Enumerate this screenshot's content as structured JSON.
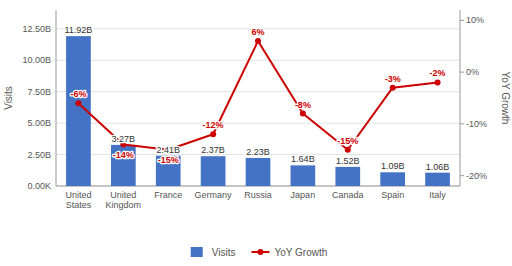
{
  "chart_data": {
    "type": "bar",
    "categories": [
      "United\nStates",
      "United\nKingdom",
      "France",
      "Germany",
      "Russia",
      "Japan",
      "Canada",
      "Spain",
      "Italy"
    ],
    "ylabel": "Visits",
    "y2label": "YoY Growth",
    "series": [
      {
        "name": "Visits",
        "type": "bar",
        "color": "#4472C4",
        "values": [
          11.92,
          3.27,
          2.41,
          2.37,
          2.23,
          1.64,
          1.52,
          1.09,
          1.06
        ],
        "value_labels": [
          "11.92B",
          "3.27B",
          "2.41B",
          "2.37B",
          "2.23B",
          "1.64B",
          "1.52B",
          "1.09B",
          "1.06B"
        ]
      },
      {
        "name": "YoY Growth",
        "type": "line",
        "axis": "y2",
        "color": "#CC0000",
        "marker": "circle",
        "line_style": "solid",
        "values": [
          -6,
          -14,
          -15,
          -12,
          6,
          -8,
          -15,
          -3,
          -2
        ],
        "value_labels": [
          "-6%",
          "-14%",
          "-15%",
          "-12%",
          "6%",
          "-8%",
          "-15%",
          "-3%",
          "-2%"
        ]
      }
    ],
    "ylim": [
      0,
      14.0
    ],
    "yticks": [
      {
        "value": 0,
        "label": "0.00K"
      },
      {
        "value": 2.5,
        "label": "2.50B"
      },
      {
        "value": 5.0,
        "label": "5.00B"
      },
      {
        "value": 7.5,
        "label": "7.50B"
      },
      {
        "value": 10.0,
        "label": "10.00B"
      },
      {
        "value": 12.5,
        "label": "12.50B"
      }
    ],
    "y2lim": [
      -22,
      12
    ],
    "y2ticks": [
      {
        "value": -20,
        "label": "-20%"
      },
      {
        "value": -10,
        "label": "-10%"
      },
      {
        "value": 0,
        "label": "0%"
      },
      {
        "value": 10,
        "label": "10%"
      }
    ],
    "grid": true,
    "legend": "bottom",
    "data_labels": true
  }
}
